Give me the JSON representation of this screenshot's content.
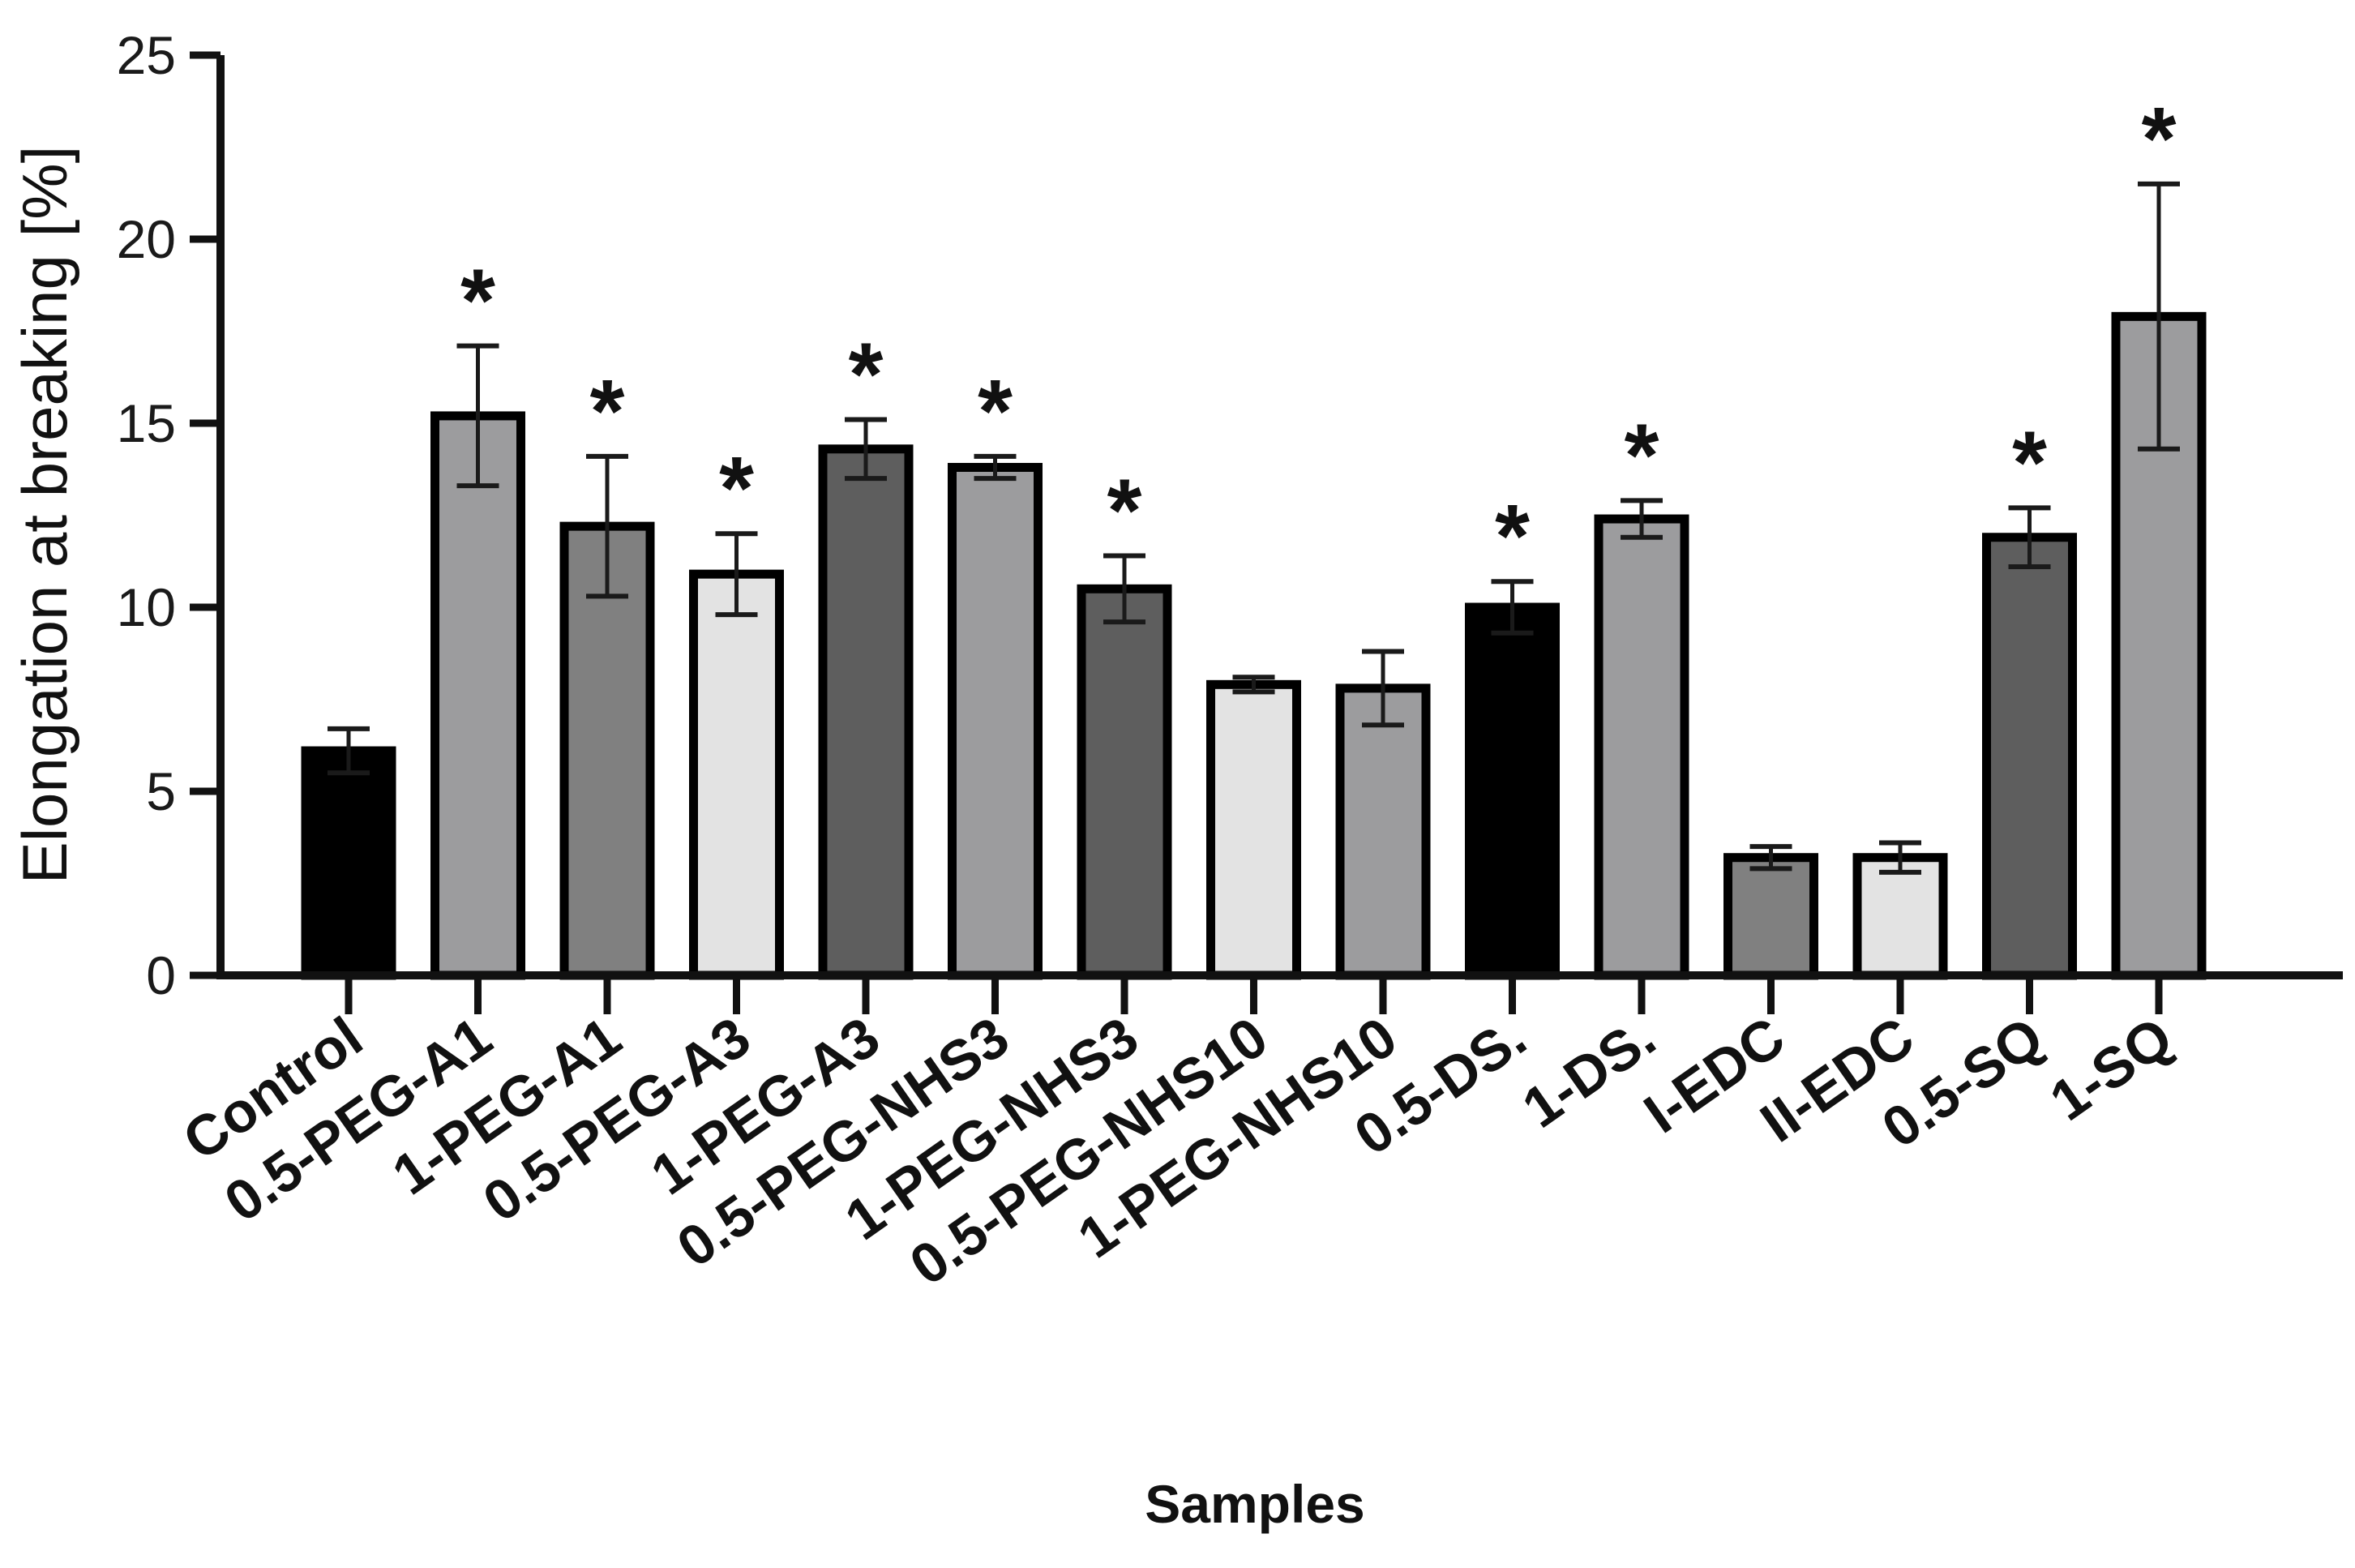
{
  "chart_data": {
    "type": "bar",
    "title": "",
    "xlabel": "Samples",
    "ylabel": "Elongation at breaking [%]",
    "ylim": [
      0,
      25
    ],
    "yticks": [
      0,
      5,
      10,
      15,
      20,
      25
    ],
    "grid": false,
    "categories": [
      "Control",
      "0.5-PEG-A1",
      "1-PEG-A1",
      "0.5-PEG-A3",
      "1-PEG-A3",
      "0.5-PEG-NHS3",
      "1-PEG-NHS3",
      "0.5-PEG-NHS10",
      "1-PEG-NHS10",
      "0.5-DS.",
      "1-DS.",
      "I-EDC",
      "II-EDC",
      "0.5-SQ",
      "1-SQ"
    ],
    "values": [
      6.1,
      15.2,
      12.2,
      10.9,
      14.3,
      13.8,
      10.5,
      7.9,
      7.8,
      10.0,
      12.4,
      3.2,
      3.2,
      11.9,
      17.9
    ],
    "errors": [
      0.6,
      1.9,
      1.9,
      1.1,
      0.8,
      0.3,
      0.9,
      0.2,
      1.0,
      0.7,
      0.5,
      0.3,
      0.4,
      0.8,
      3.6
    ],
    "significant": [
      false,
      true,
      true,
      true,
      true,
      true,
      true,
      false,
      false,
      true,
      true,
      false,
      false,
      true,
      true
    ],
    "significance_marker": "*",
    "colors": [
      "#000000",
      "#9c9c9e",
      "#808080",
      "#e3e3e3",
      "#5e5e5e",
      "#9c9c9e",
      "#5e5e5e",
      "#e3e3e3",
      "#9c9c9e",
      "#000000",
      "#9c9c9e",
      "#808080",
      "#e3e3e3",
      "#5e5e5e",
      "#9c9c9e"
    ]
  }
}
